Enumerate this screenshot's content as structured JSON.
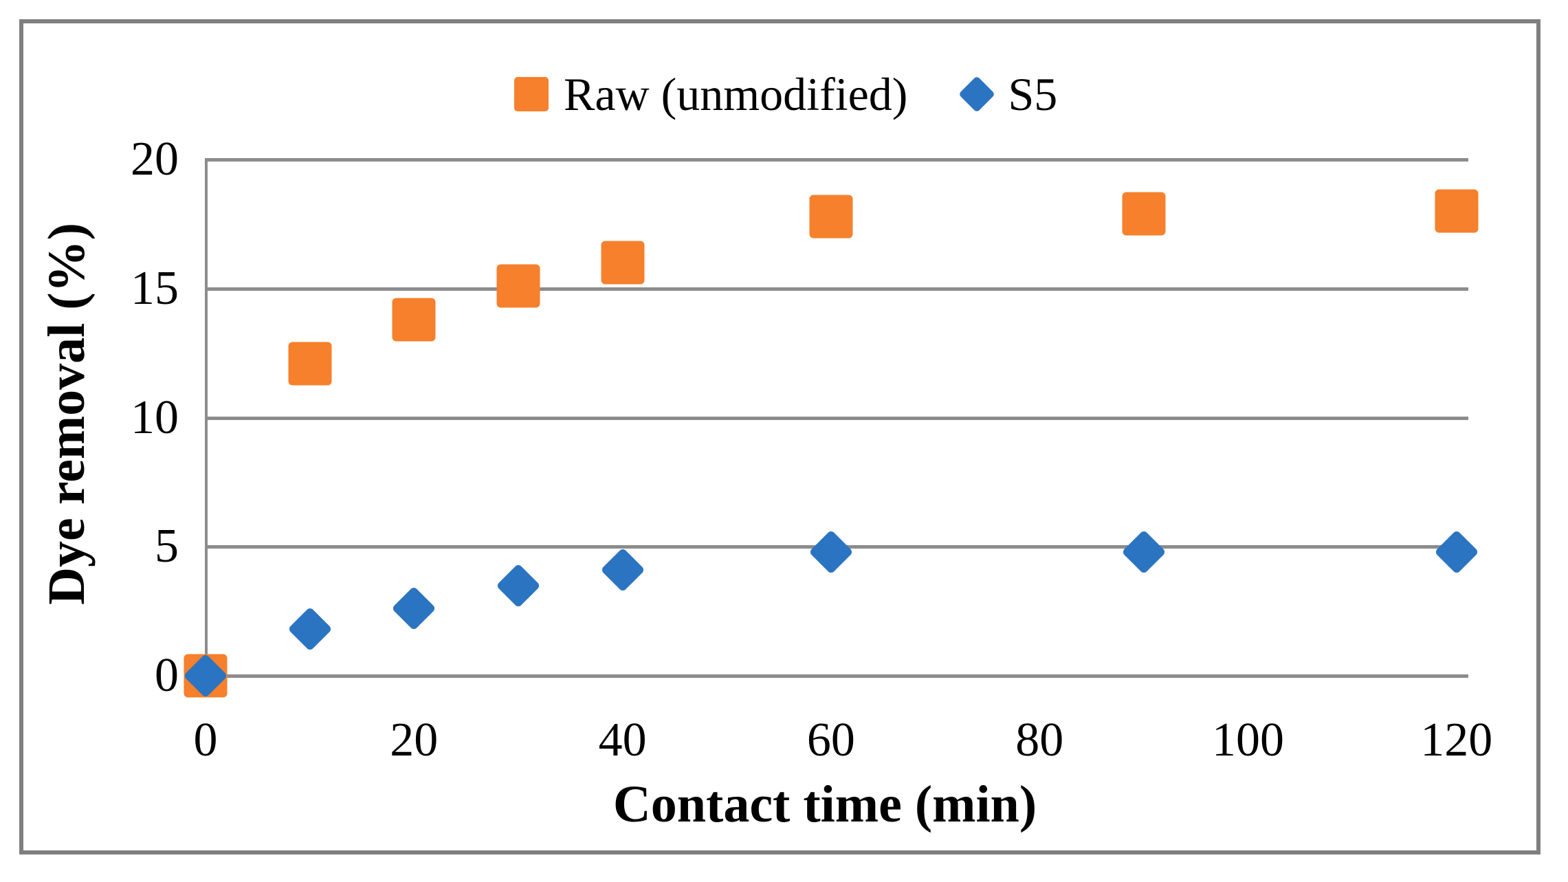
{
  "chart_data": {
    "type": "scatter",
    "title": "",
    "xlabel": "Contact time (min)",
    "ylabel": "Dye removal (%)",
    "x": [
      0,
      10,
      20,
      30,
      40,
      60,
      90,
      120
    ],
    "series": [
      {
        "name": "Raw (unmodified)",
        "marker": "square",
        "color": "#F6802B",
        "values": [
          0,
          12.1,
          13.8,
          15.1,
          16.0,
          17.8,
          17.9,
          18.0
        ]
      },
      {
        "name": "S5",
        "marker": "diamond",
        "color": "#2B74C1",
        "values": [
          0,
          1.8,
          2.6,
          3.5,
          4.1,
          4.8,
          4.8,
          4.8
        ]
      }
    ],
    "xticks": [
      0,
      20,
      40,
      60,
      80,
      100,
      120
    ],
    "yticks": [
      0,
      5,
      10,
      15,
      20
    ],
    "xlim": [
      0,
      121
    ],
    "ylim": [
      0,
      20
    ],
    "grid": "horizontal",
    "legend_position": "top-center",
    "gridline_color": "#8C8C8C",
    "border_color": "#7F7F7F",
    "text_color": "#000000",
    "background": "#FFFFFF"
  }
}
